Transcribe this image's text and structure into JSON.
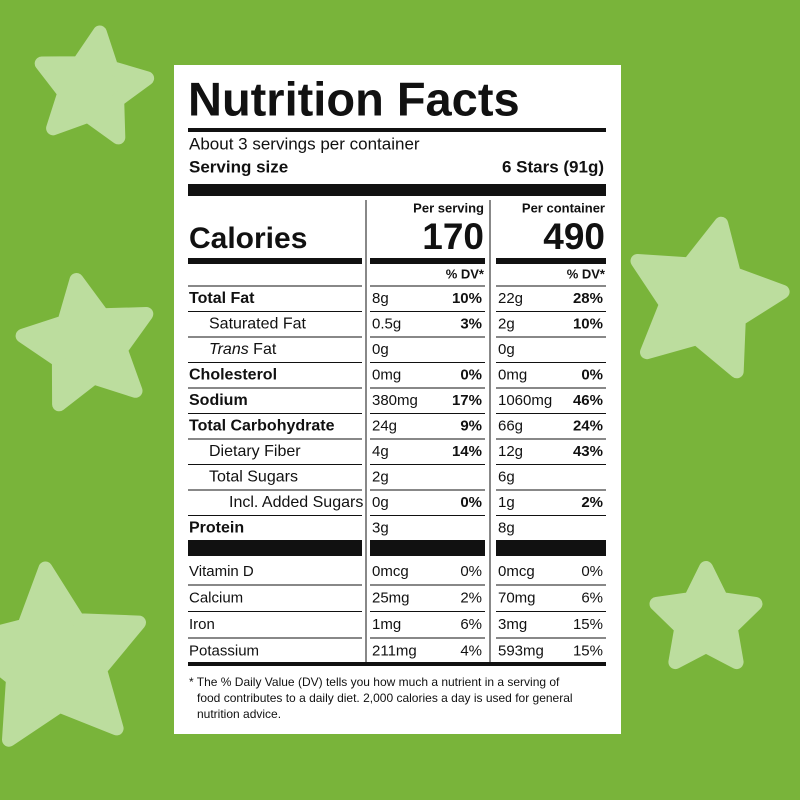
{
  "title": "Nutrition Facts",
  "servings": "About 3 servings per container",
  "serving_size": {
    "label": "Serving size",
    "value": "6 Stars (91g)"
  },
  "calories": {
    "label": "Calories"
  },
  "columns": [
    {
      "header": "Per serving",
      "calories": "170",
      "dv_header": "% DV*"
    },
    {
      "header": "Per container",
      "calories": "490",
      "dv_header": "% DV*"
    }
  ],
  "nutrients": [
    {
      "name": "Total Fat",
      "bold": true,
      "indent": 0,
      "values": [
        [
          "8g",
          "10%"
        ],
        [
          "22g",
          "28%"
        ]
      ]
    },
    {
      "name": "Saturated Fat",
      "bold": false,
      "indent": 1,
      "values": [
        [
          "0.5g",
          "3%"
        ],
        [
          "2g",
          "10%"
        ]
      ]
    },
    {
      "name_italic": "Trans",
      "name": "Fat",
      "bold": false,
      "indent": 1,
      "values": [
        [
          "0g",
          null
        ],
        [
          "0g",
          null
        ]
      ]
    },
    {
      "name": "Cholesterol",
      "bold": true,
      "indent": 0,
      "values": [
        [
          "0mg",
          "0%"
        ],
        [
          "0mg",
          "0%"
        ]
      ]
    },
    {
      "name": "Sodium",
      "bold": true,
      "indent": 0,
      "values": [
        [
          "380mg",
          "17%"
        ],
        [
          "1060mg",
          "46%"
        ]
      ]
    },
    {
      "name": "Total Carbohydrate",
      "bold": true,
      "indent": 0,
      "values": [
        [
          "24g",
          "9%"
        ],
        [
          "66g",
          "24%"
        ]
      ]
    },
    {
      "name": "Dietary Fiber",
      "bold": false,
      "indent": 1,
      "values": [
        [
          "4g",
          "14%"
        ],
        [
          "12g",
          "43%"
        ]
      ]
    },
    {
      "name": "Total Sugars",
      "bold": false,
      "indent": 1,
      "values": [
        [
          "2g",
          null
        ],
        [
          "6g",
          null
        ]
      ]
    },
    {
      "name": "Incl. Added Sugars",
      "bold": false,
      "indent": 2,
      "values": [
        [
          "0g",
          "0%"
        ],
        [
          "1g",
          "2%"
        ]
      ]
    },
    {
      "name": "Protein",
      "bold": true,
      "indent": 0,
      "values": [
        [
          "3g",
          null
        ],
        [
          "8g",
          null
        ]
      ]
    }
  ],
  "vitamins": [
    {
      "name": "Vitamin D",
      "values": [
        [
          "0mcg",
          "0%"
        ],
        [
          "0mcg",
          "0%"
        ]
      ]
    },
    {
      "name": "Calcium",
      "values": [
        [
          "25mg",
          "2%"
        ],
        [
          "70mg",
          "6%"
        ]
      ]
    },
    {
      "name": "Iron",
      "values": [
        [
          "1mg",
          "6%"
        ],
        [
          "3mg",
          "15%"
        ]
      ]
    },
    {
      "name": "Potassium",
      "values": [
        [
          "211mg",
          "4%"
        ],
        [
          "593mg",
          "15%"
        ]
      ]
    }
  ],
  "footnote": [
    "* The % Daily Value (DV) tells you how much a nutrient in a serving of",
    "food contributes to a daily diet. 2,000 calories a day is used for general",
    "nutrition advice."
  ]
}
